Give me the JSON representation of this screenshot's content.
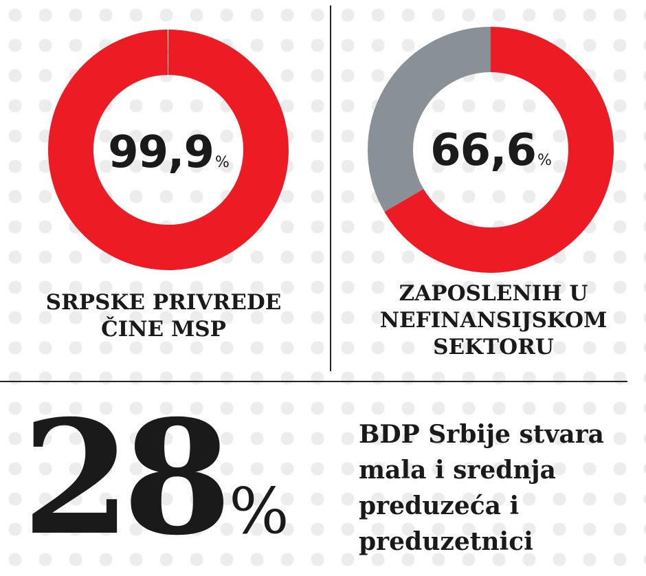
{
  "colors": {
    "accent": "#ed1c24",
    "secondary": "#8a9196",
    "text": "#1a1a1a",
    "divider": "#222222"
  },
  "chart_data": [
    {
      "type": "pie",
      "variant": "donut",
      "value_label": "99,9",
      "unit": "%",
      "values": [
        99.9,
        0.1
      ],
      "series_colors": [
        "#ed1c24",
        "#8a9196"
      ],
      "caption_lines": [
        "SRPSKE PRIVREDE",
        "ČINE MSP"
      ]
    },
    {
      "type": "pie",
      "variant": "donut",
      "value_label": "66,6",
      "unit": "%",
      "values": [
        66.6,
        33.4
      ],
      "series_colors": [
        "#ed1c24",
        "#8a9196"
      ],
      "caption_lines": [
        "ZAPOSLENIH U",
        "NEFINANSIJSKOM",
        "SEKTORU"
      ]
    }
  ],
  "highlight": {
    "value": "28",
    "unit": "%",
    "description_lines": [
      "BDP Srbije stvara",
      "mala i srednja",
      "preduzeća i",
      "preduzetnici"
    ]
  }
}
